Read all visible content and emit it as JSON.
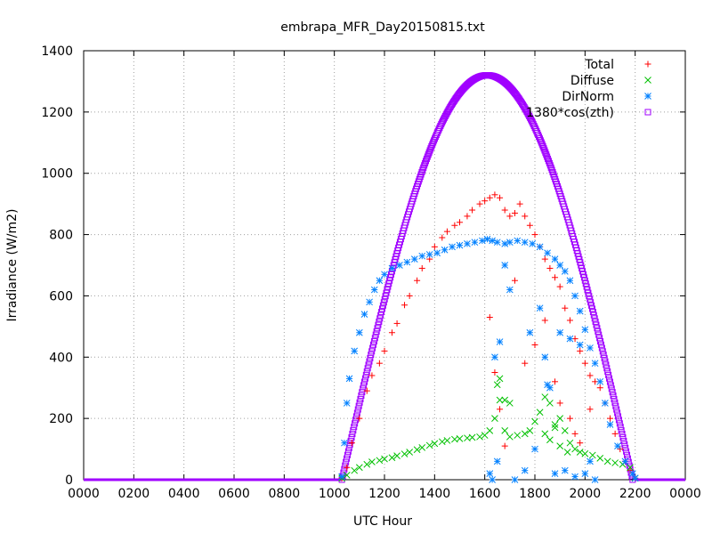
{
  "chart_data": {
    "type": "scatter",
    "title": "embrapa_MFR_Day20150815.txt",
    "xlabel": "UTC Hour",
    "ylabel": "Irradiance (W/m2)",
    "xlim": [
      0,
      24
    ],
    "ylim": [
      0,
      1400
    ],
    "x_ticks": [
      {
        "value": 0,
        "label": "0000"
      },
      {
        "value": 2,
        "label": "0200"
      },
      {
        "value": 4,
        "label": "0400"
      },
      {
        "value": 6,
        "label": "0600"
      },
      {
        "value": 8,
        "label": "0800"
      },
      {
        "value": 10,
        "label": "1000"
      },
      {
        "value": 12,
        "label": "1200"
      },
      {
        "value": 14,
        "label": "1400"
      },
      {
        "value": 16,
        "label": "1600"
      },
      {
        "value": 18,
        "label": "1800"
      },
      {
        "value": 20,
        "label": "2000"
      },
      {
        "value": 22,
        "label": "2200"
      },
      {
        "value": 24,
        "label": "0000"
      }
    ],
    "y_ticks": [
      0,
      200,
      400,
      600,
      800,
      1000,
      1200,
      1400
    ],
    "grid": true,
    "legend_position": "top-right",
    "series": [
      {
        "name": "Total",
        "marker": "plus",
        "color": "#ff0000",
        "points": [
          [
            10.3,
            5
          ],
          [
            10.5,
            40
          ],
          [
            10.7,
            120
          ],
          [
            11.0,
            200
          ],
          [
            11.3,
            290
          ],
          [
            11.5,
            340
          ],
          [
            11.8,
            380
          ],
          [
            12.0,
            420
          ],
          [
            12.3,
            480
          ],
          [
            12.5,
            510
          ],
          [
            12.8,
            570
          ],
          [
            13.0,
            600
          ],
          [
            13.3,
            650
          ],
          [
            13.5,
            690
          ],
          [
            13.8,
            720
          ],
          [
            14.0,
            760
          ],
          [
            14.3,
            790
          ],
          [
            14.5,
            810
          ],
          [
            14.8,
            830
          ],
          [
            15.0,
            840
          ],
          [
            15.3,
            860
          ],
          [
            15.5,
            880
          ],
          [
            15.8,
            900
          ],
          [
            16.0,
            910
          ],
          [
            16.2,
            920
          ],
          [
            16.4,
            930
          ],
          [
            16.6,
            920
          ],
          [
            16.8,
            880
          ],
          [
            17.0,
            860
          ],
          [
            17.2,
            870
          ],
          [
            17.4,
            900
          ],
          [
            17.6,
            860
          ],
          [
            17.8,
            830
          ],
          [
            18.0,
            800
          ],
          [
            18.2,
            760
          ],
          [
            18.4,
            720
          ],
          [
            18.6,
            690
          ],
          [
            18.8,
            660
          ],
          [
            19.0,
            630
          ],
          [
            19.2,
            560
          ],
          [
            19.4,
            520
          ],
          [
            19.6,
            460
          ],
          [
            19.8,
            420
          ],
          [
            20.0,
            380
          ],
          [
            20.2,
            340
          ],
          [
            20.4,
            320
          ],
          [
            20.6,
            300
          ],
          [
            20.8,
            250
          ],
          [
            21.0,
            200
          ],
          [
            21.2,
            150
          ],
          [
            21.4,
            100
          ],
          [
            21.6,
            60
          ],
          [
            21.8,
            30
          ],
          [
            22.0,
            5
          ],
          [
            16.2,
            530
          ],
          [
            16.4,
            350
          ],
          [
            16.6,
            230
          ],
          [
            16.8,
            110
          ],
          [
            17.2,
            650
          ],
          [
            17.6,
            380
          ],
          [
            18.0,
            440
          ],
          [
            18.4,
            520
          ],
          [
            18.8,
            320
          ],
          [
            19.0,
            250
          ],
          [
            19.4,
            200
          ],
          [
            19.6,
            150
          ],
          [
            19.8,
            120
          ],
          [
            20.2,
            230
          ]
        ]
      },
      {
        "name": "Diffuse",
        "marker": "cross",
        "color": "#00c000",
        "points": [
          [
            10.3,
            5
          ],
          [
            10.5,
            15
          ],
          [
            10.8,
            30
          ],
          [
            11.0,
            40
          ],
          [
            11.3,
            50
          ],
          [
            11.5,
            58
          ],
          [
            11.8,
            63
          ],
          [
            12.0,
            68
          ],
          [
            12.3,
            72
          ],
          [
            12.5,
            78
          ],
          [
            12.8,
            84
          ],
          [
            13.0,
            90
          ],
          [
            13.3,
            98
          ],
          [
            13.5,
            105
          ],
          [
            13.8,
            112
          ],
          [
            14.0,
            118
          ],
          [
            14.3,
            124
          ],
          [
            14.5,
            128
          ],
          [
            14.8,
            132
          ],
          [
            15.0,
            134
          ],
          [
            15.3,
            136
          ],
          [
            15.5,
            138
          ],
          [
            15.8,
            140
          ],
          [
            16.0,
            145
          ],
          [
            16.2,
            160
          ],
          [
            16.4,
            200
          ],
          [
            16.6,
            260
          ],
          [
            16.8,
            160
          ],
          [
            17.0,
            140
          ],
          [
            17.3,
            145
          ],
          [
            17.6,
            150
          ],
          [
            17.8,
            160
          ],
          [
            18.0,
            190
          ],
          [
            18.2,
            220
          ],
          [
            18.4,
            150
          ],
          [
            18.6,
            130
          ],
          [
            18.8,
            170
          ],
          [
            19.0,
            200
          ],
          [
            19.2,
            160
          ],
          [
            19.4,
            120
          ],
          [
            19.6,
            100
          ],
          [
            19.8,
            90
          ],
          [
            20.0,
            85
          ],
          [
            20.3,
            80
          ],
          [
            20.6,
            70
          ],
          [
            20.9,
            60
          ],
          [
            21.2,
            55
          ],
          [
            21.5,
            50
          ],
          [
            21.8,
            40
          ],
          [
            22.0,
            5
          ],
          [
            16.5,
            310
          ],
          [
            16.6,
            330
          ],
          [
            16.8,
            260
          ],
          [
            17.0,
            250
          ],
          [
            18.4,
            270
          ],
          [
            18.6,
            250
          ],
          [
            18.8,
            180
          ],
          [
            19.0,
            110
          ],
          [
            19.3,
            90
          ]
        ]
      },
      {
        "name": "DirNorm",
        "marker": "star",
        "color": "#0080ff",
        "points": [
          [
            10.3,
            10
          ],
          [
            10.4,
            120
          ],
          [
            10.5,
            250
          ],
          [
            10.6,
            330
          ],
          [
            10.8,
            420
          ],
          [
            11.0,
            480
          ],
          [
            11.2,
            540
          ],
          [
            11.4,
            580
          ],
          [
            11.6,
            620
          ],
          [
            11.8,
            650
          ],
          [
            12.0,
            670
          ],
          [
            12.3,
            690
          ],
          [
            12.6,
            700
          ],
          [
            12.9,
            710
          ],
          [
            13.2,
            720
          ],
          [
            13.5,
            730
          ],
          [
            13.8,
            735
          ],
          [
            14.1,
            740
          ],
          [
            14.4,
            750
          ],
          [
            14.7,
            760
          ],
          [
            15.0,
            765
          ],
          [
            15.3,
            770
          ],
          [
            15.6,
            775
          ],
          [
            15.9,
            780
          ],
          [
            16.1,
            785
          ],
          [
            16.3,
            780
          ],
          [
            16.5,
            775
          ],
          [
            16.8,
            770
          ],
          [
            17.0,
            775
          ],
          [
            17.3,
            780
          ],
          [
            17.6,
            775
          ],
          [
            17.9,
            770
          ],
          [
            18.2,
            760
          ],
          [
            18.5,
            740
          ],
          [
            18.8,
            720
          ],
          [
            19.0,
            700
          ],
          [
            19.2,
            680
          ],
          [
            19.4,
            650
          ],
          [
            19.6,
            600
          ],
          [
            19.8,
            550
          ],
          [
            20.0,
            490
          ],
          [
            20.2,
            430
          ],
          [
            20.4,
            380
          ],
          [
            20.6,
            320
          ],
          [
            20.8,
            250
          ],
          [
            21.0,
            180
          ],
          [
            21.3,
            110
          ],
          [
            21.6,
            60
          ],
          [
            21.9,
            20
          ],
          [
            22.0,
            5
          ],
          [
            16.2,
            20
          ],
          [
            16.3,
            0
          ],
          [
            16.4,
            400
          ],
          [
            16.5,
            60
          ],
          [
            16.6,
            450
          ],
          [
            16.8,
            700
          ],
          [
            17.0,
            620
          ],
          [
            17.2,
            0
          ],
          [
            17.6,
            30
          ],
          [
            17.8,
            480
          ],
          [
            18.0,
            100
          ],
          [
            18.2,
            560
          ],
          [
            18.4,
            400
          ],
          [
            18.5,
            310
          ],
          [
            18.6,
            300
          ],
          [
            18.8,
            20
          ],
          [
            19.0,
            480
          ],
          [
            19.2,
            30
          ],
          [
            19.4,
            460
          ],
          [
            19.6,
            10
          ],
          [
            19.8,
            440
          ],
          [
            20.0,
            20
          ],
          [
            20.2,
            60
          ],
          [
            20.4,
            0
          ]
        ]
      },
      {
        "name": "1380*cos(zth)",
        "marker": "square",
        "color": "#a000ff",
        "peak": 1320,
        "peak_x": 16.1,
        "rise_x": 10.3,
        "set_x": 21.9,
        "points": []
      }
    ]
  }
}
